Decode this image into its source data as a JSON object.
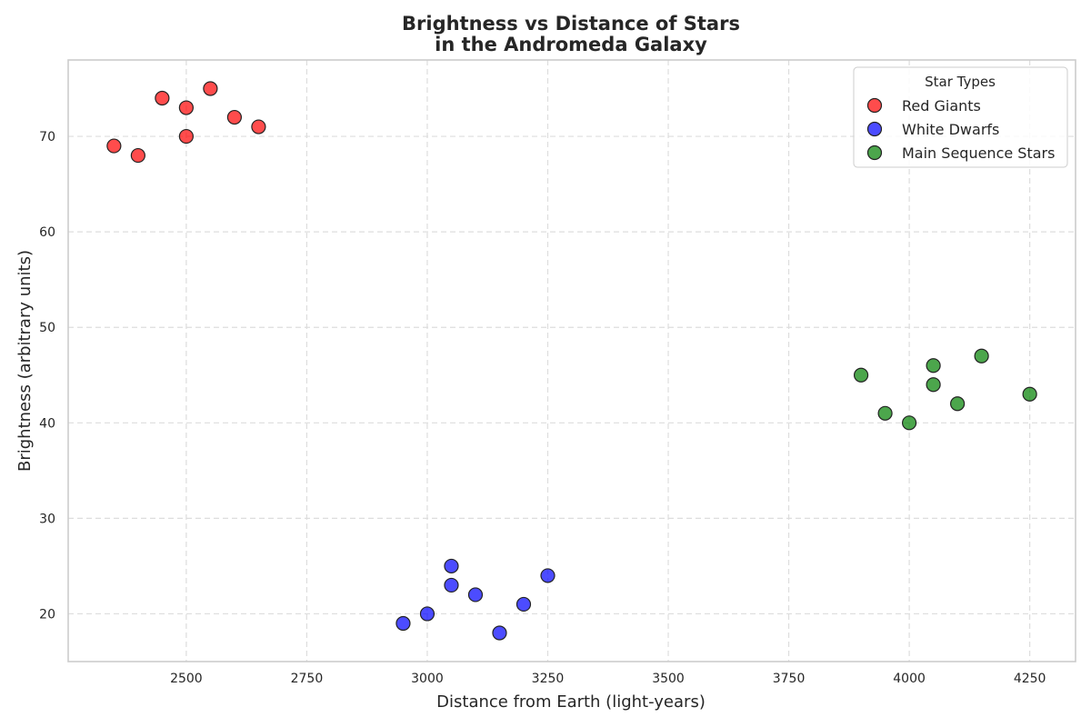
{
  "chart_data": {
    "type": "scatter",
    "title": [
      "Brightness vs Distance of Stars",
      "in the Andromeda Galaxy"
    ],
    "xlabel": "Distance from Earth (light-years)",
    "ylabel": "Brightness (arbitrary units)",
    "xlim": [
      2255,
      4345
    ],
    "ylim": [
      15,
      78
    ],
    "xticks": [
      2500,
      2750,
      3000,
      3250,
      3500,
      3750,
      4000,
      4250
    ],
    "yticks": [
      20,
      30,
      40,
      50,
      60,
      70
    ],
    "grid": true,
    "legend": {
      "title": "Star Types",
      "placement": "top-right"
    },
    "series": [
      {
        "name": "Red Giants",
        "color": "#ff0000",
        "points": [
          {
            "x": 2350,
            "y": 69
          },
          {
            "x": 2400,
            "y": 68
          },
          {
            "x": 2450,
            "y": 74
          },
          {
            "x": 2500,
            "y": 73
          },
          {
            "x": 2500,
            "y": 70
          },
          {
            "x": 2550,
            "y": 75
          },
          {
            "x": 2600,
            "y": 72
          },
          {
            "x": 2650,
            "y": 71
          }
        ]
      },
      {
        "name": "White Dwarfs",
        "color": "#0000ff",
        "points": [
          {
            "x": 2950,
            "y": 19
          },
          {
            "x": 3000,
            "y": 20
          },
          {
            "x": 3050,
            "y": 25
          },
          {
            "x": 3050,
            "y": 23
          },
          {
            "x": 3100,
            "y": 22
          },
          {
            "x": 3150,
            "y": 18
          },
          {
            "x": 3200,
            "y": 21
          },
          {
            "x": 3250,
            "y": 24
          }
        ]
      },
      {
        "name": "Main Sequence Stars",
        "color": "#008000",
        "points": [
          {
            "x": 3900,
            "y": 45
          },
          {
            "x": 3950,
            "y": 41
          },
          {
            "x": 4000,
            "y": 40
          },
          {
            "x": 4050,
            "y": 46
          },
          {
            "x": 4050,
            "y": 44
          },
          {
            "x": 4100,
            "y": 42
          },
          {
            "x": 4150,
            "y": 47
          },
          {
            "x": 4250,
            "y": 43
          }
        ]
      }
    ]
  }
}
